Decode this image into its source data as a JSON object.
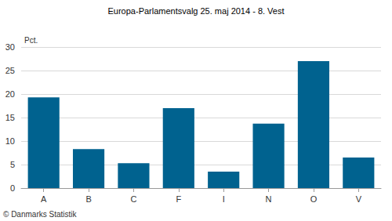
{
  "chart_data": {
    "type": "bar",
    "title": "Europa-Parlamentsvalg 25. maj 2014 - 8. Vest",
    "ylabel": "Pct.",
    "categories": [
      "A",
      "B",
      "C",
      "F",
      "I",
      "N",
      "O",
      "V"
    ],
    "values": [
      19.3,
      8.3,
      5.3,
      17.0,
      3.5,
      13.7,
      27.0,
      6.5
    ],
    "color": "#00628f",
    "ylim": [
      0,
      30
    ],
    "yticks": [
      0,
      5,
      10,
      15,
      20,
      25,
      30
    ],
    "grid": true,
    "annotations": [
      "© Danmarks Statistik"
    ]
  }
}
